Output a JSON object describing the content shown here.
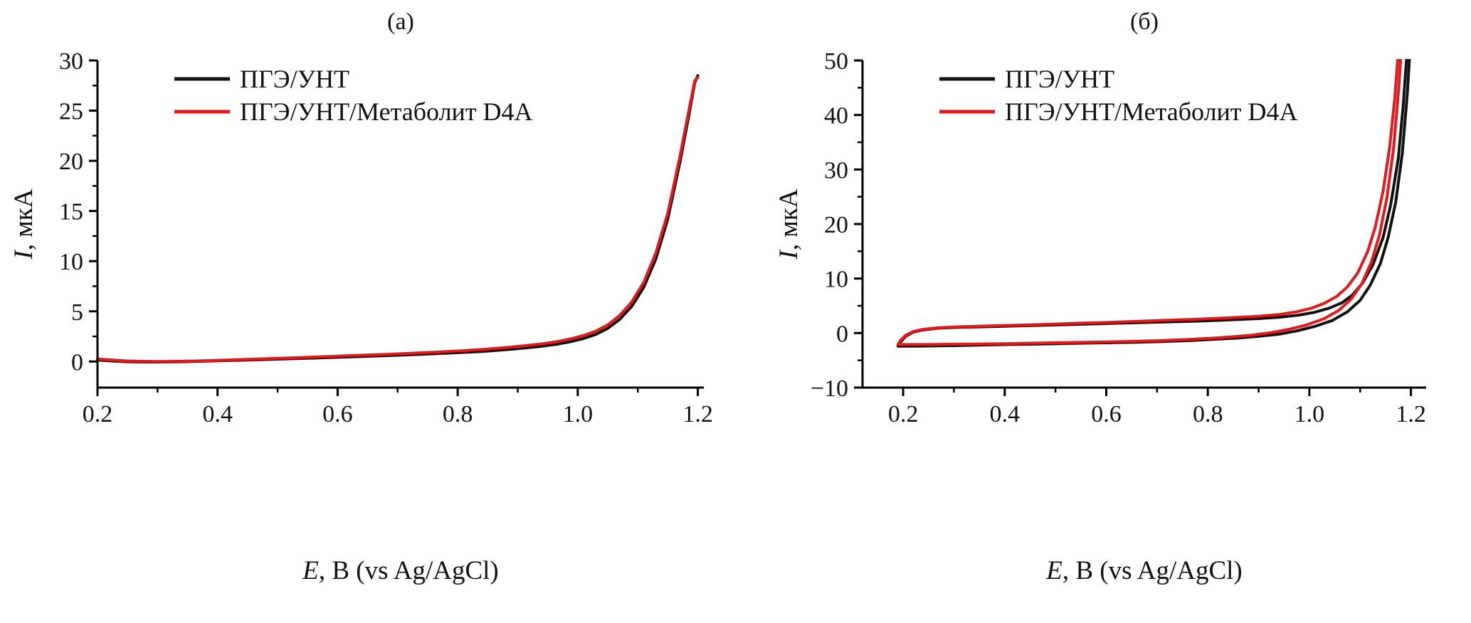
{
  "figure": {
    "background": "#ffffff",
    "axis_color": "#000000"
  },
  "colors": {
    "series_black": "#111111",
    "series_red": "#e3191c"
  },
  "chart_data": [
    {
      "type": "line",
      "title": "(а)",
      "xlabel": {
        "italic": "E",
        "rest": ", В (vs Ag/AgCl)"
      },
      "ylabel": {
        "italic": "I",
        "rest": ", мкА"
      },
      "xlim": [
        0.2,
        1.21
      ],
      "ylim": [
        -2.6,
        30
      ],
      "xticks": [
        0.2,
        0.4,
        0.6,
        0.8,
        1.0,
        1.2
      ],
      "xtick_labels": [
        "0.2",
        "0.4",
        "0.6",
        "0.8",
        "1.0",
        "1.2"
      ],
      "yticks": [
        0,
        5,
        10,
        15,
        20,
        25,
        30
      ],
      "ytick_labels": [
        "0",
        "5",
        "10",
        "15",
        "20",
        "25",
        "30"
      ],
      "minor_xticks": [
        0.3,
        0.5,
        0.7,
        0.9,
        1.1
      ],
      "minor_yticks": [
        2.5,
        7.5,
        12.5,
        17.5,
        22.5,
        27.5
      ],
      "grid": false,
      "legend_position": "top-left",
      "legend": [
        {
          "label": "ПГЭ/УНТ",
          "color": "#111111"
        },
        {
          "label": "ПГЭ/УНТ/Метаболит D4A",
          "color": "#e3191c"
        }
      ],
      "series": [
        {
          "name": "ПГЭ/УНТ",
          "color": "#111111",
          "x": [
            0.2,
            0.225,
            0.25,
            0.275,
            0.3,
            0.33,
            0.36,
            0.4,
            0.44,
            0.48,
            0.52,
            0.56,
            0.6,
            0.64,
            0.68,
            0.72,
            0.76,
            0.8,
            0.84,
            0.88,
            0.91,
            0.94,
            0.965,
            0.99,
            1.01,
            1.03,
            1.05,
            1.07,
            1.09,
            1.11,
            1.13,
            1.15,
            1.17,
            1.185,
            1.195,
            1.2
          ],
          "y": [
            0.15,
            0.05,
            -0.02,
            -0.05,
            -0.05,
            -0.03,
            0,
            0.07,
            0.13,
            0.2,
            0.27,
            0.34,
            0.42,
            0.5,
            0.58,
            0.67,
            0.77,
            0.88,
            1,
            1.18,
            1.33,
            1.52,
            1.72,
            2,
            2.3,
            2.7,
            3.3,
            4.2,
            5.5,
            7.4,
            10.2,
            14.2,
            19.8,
            24.5,
            27.8,
            28.5
          ]
        },
        {
          "name": "ПГЭ/УНТ/Метаболит D4A",
          "color": "#e3191c",
          "x": [
            0.2,
            0.225,
            0.25,
            0.275,
            0.3,
            0.33,
            0.36,
            0.4,
            0.44,
            0.48,
            0.52,
            0.56,
            0.6,
            0.64,
            0.68,
            0.72,
            0.76,
            0.8,
            0.84,
            0.88,
            0.91,
            0.94,
            0.965,
            0.99,
            1.01,
            1.03,
            1.05,
            1.07,
            1.09,
            1.11,
            1.13,
            1.15,
            1.17,
            1.185,
            1.195,
            1.2
          ],
          "y": [
            0.25,
            0.15,
            0.06,
            0.02,
            0,
            0.02,
            0.05,
            0.12,
            0.2,
            0.28,
            0.36,
            0.45,
            0.54,
            0.63,
            0.72,
            0.82,
            0.93,
            1.05,
            1.2,
            1.4,
            1.56,
            1.76,
            1.98,
            2.28,
            2.6,
            3.02,
            3.65,
            4.6,
            5.95,
            7.9,
            10.8,
            14.8,
            20.4,
            25,
            28,
            28.3
          ]
        }
      ]
    },
    {
      "type": "line",
      "title": "(б)",
      "xlabel": {
        "italic": "E",
        "rest": ", В (vs Ag/AgCl)"
      },
      "ylabel": {
        "italic": "I",
        "rest": ", мкА"
      },
      "xlim": [
        0.12,
        1.23
      ],
      "ylim": [
        -10,
        50
      ],
      "xticks": [
        0.2,
        0.4,
        0.6,
        0.8,
        1.0,
        1.2
      ],
      "xtick_labels": [
        "0.2",
        "0.4",
        "0.6",
        "0.8",
        "1.0",
        "1.2"
      ],
      "yticks": [
        -10,
        0,
        10,
        20,
        30,
        40,
        50
      ],
      "ytick_labels": [
        "−10",
        "0",
        "10",
        "20",
        "30",
        "40",
        "50"
      ],
      "minor_xticks": [
        0.3,
        0.5,
        0.7,
        0.9,
        1.1
      ],
      "minor_yticks": [
        -5,
        5,
        15,
        25,
        35,
        45
      ],
      "grid": false,
      "legend_position": "top-left",
      "legend": [
        {
          "label": "ПГЭ/УНТ",
          "color": "#111111"
        },
        {
          "label": "ПГЭ/УНТ/Метаболит D4A",
          "color": "#e3191c"
        }
      ],
      "series": [
        {
          "name": "ПГЭ/УНТ",
          "color": "#111111",
          "x": [
            0.19,
            0.195,
            0.205,
            0.22,
            0.24,
            0.27,
            0.31,
            0.36,
            0.42,
            0.48,
            0.54,
            0.6,
            0.66,
            0.72,
            0.78,
            0.84,
            0.9,
            0.94,
            0.98,
            1.01,
            1.04,
            1.065,
            1.085,
            1.105,
            1.125,
            1.145,
            1.16,
            1.175,
            1.185,
            1.195,
            1.205,
            1.2,
            1.193,
            1.183,
            1.17,
            1.155,
            1.14,
            1.12,
            1.1,
            1.075,
            1.045,
            1.01,
            0.975,
            0.94,
            0.9,
            0.86,
            0.82,
            0.77,
            0.71,
            0.65,
            0.59,
            0.53,
            0.47,
            0.41,
            0.35,
            0.3,
            0.26,
            0.23,
            0.21,
            0.197,
            0.19
          ],
          "y": [
            -2.4,
            -1.6,
            -0.6,
            0.2,
            0.6,
            0.9,
            1.05,
            1.15,
            1.3,
            1.45,
            1.6,
            1.75,
            1.9,
            2.05,
            2.2,
            2.4,
            2.65,
            2.9,
            3.3,
            3.8,
            4.6,
            5.6,
            7,
            9.2,
            12.5,
            17.5,
            23.5,
            32,
            42,
            55,
            70,
            55,
            44,
            33,
            24,
            17.5,
            12.8,
            8.8,
            6,
            3.9,
            2.3,
            1.2,
            0.4,
            -0.2,
            -0.6,
            -0.9,
            -1.1,
            -1.35,
            -1.55,
            -1.7,
            -1.8,
            -1.9,
            -2,
            -2.1,
            -2.2,
            -2.3,
            -2.35,
            -2.4,
            -2.4,
            -2.4,
            -2.4
          ]
        },
        {
          "name": "ПГЭ/УНТ/Метаболит D4A",
          "color": "#e3191c",
          "x": [
            0.19,
            0.195,
            0.205,
            0.22,
            0.24,
            0.27,
            0.31,
            0.36,
            0.42,
            0.48,
            0.54,
            0.6,
            0.66,
            0.72,
            0.78,
            0.84,
            0.9,
            0.94,
            0.975,
            1.005,
            1.03,
            1.055,
            1.075,
            1.095,
            1.115,
            1.13,
            1.145,
            1.158,
            1.168,
            1.178,
            1.188,
            1.183,
            1.176,
            1.166,
            1.153,
            1.138,
            1.122,
            1.103,
            1.082,
            1.057,
            1.028,
            0.995,
            0.96,
            0.925,
            0.885,
            0.845,
            0.805,
            0.755,
            0.695,
            0.635,
            0.575,
            0.515,
            0.455,
            0.395,
            0.34,
            0.29,
            0.252,
            0.225,
            0.207,
            0.196,
            0.19
          ],
          "y": [
            -2.1,
            -1.3,
            -0.4,
            0.3,
            0.7,
            1,
            1.15,
            1.3,
            1.45,
            1.6,
            1.8,
            1.95,
            2.15,
            2.35,
            2.55,
            2.8,
            3.1,
            3.4,
            3.9,
            4.6,
            5.5,
            6.8,
            8.5,
            11,
            15,
            19.5,
            26,
            34,
            43,
            55,
            70,
            55,
            45,
            34,
            25,
            18,
            13,
            9,
            6.2,
            4.1,
            2.6,
            1.5,
            0.7,
            0.1,
            -0.4,
            -0.7,
            -0.95,
            -1.2,
            -1.4,
            -1.55,
            -1.65,
            -1.75,
            -1.85,
            -1.95,
            -2,
            -2.05,
            -2.1,
            -2.1,
            -2.1,
            -2.1,
            -2.1
          ]
        }
      ]
    }
  ]
}
